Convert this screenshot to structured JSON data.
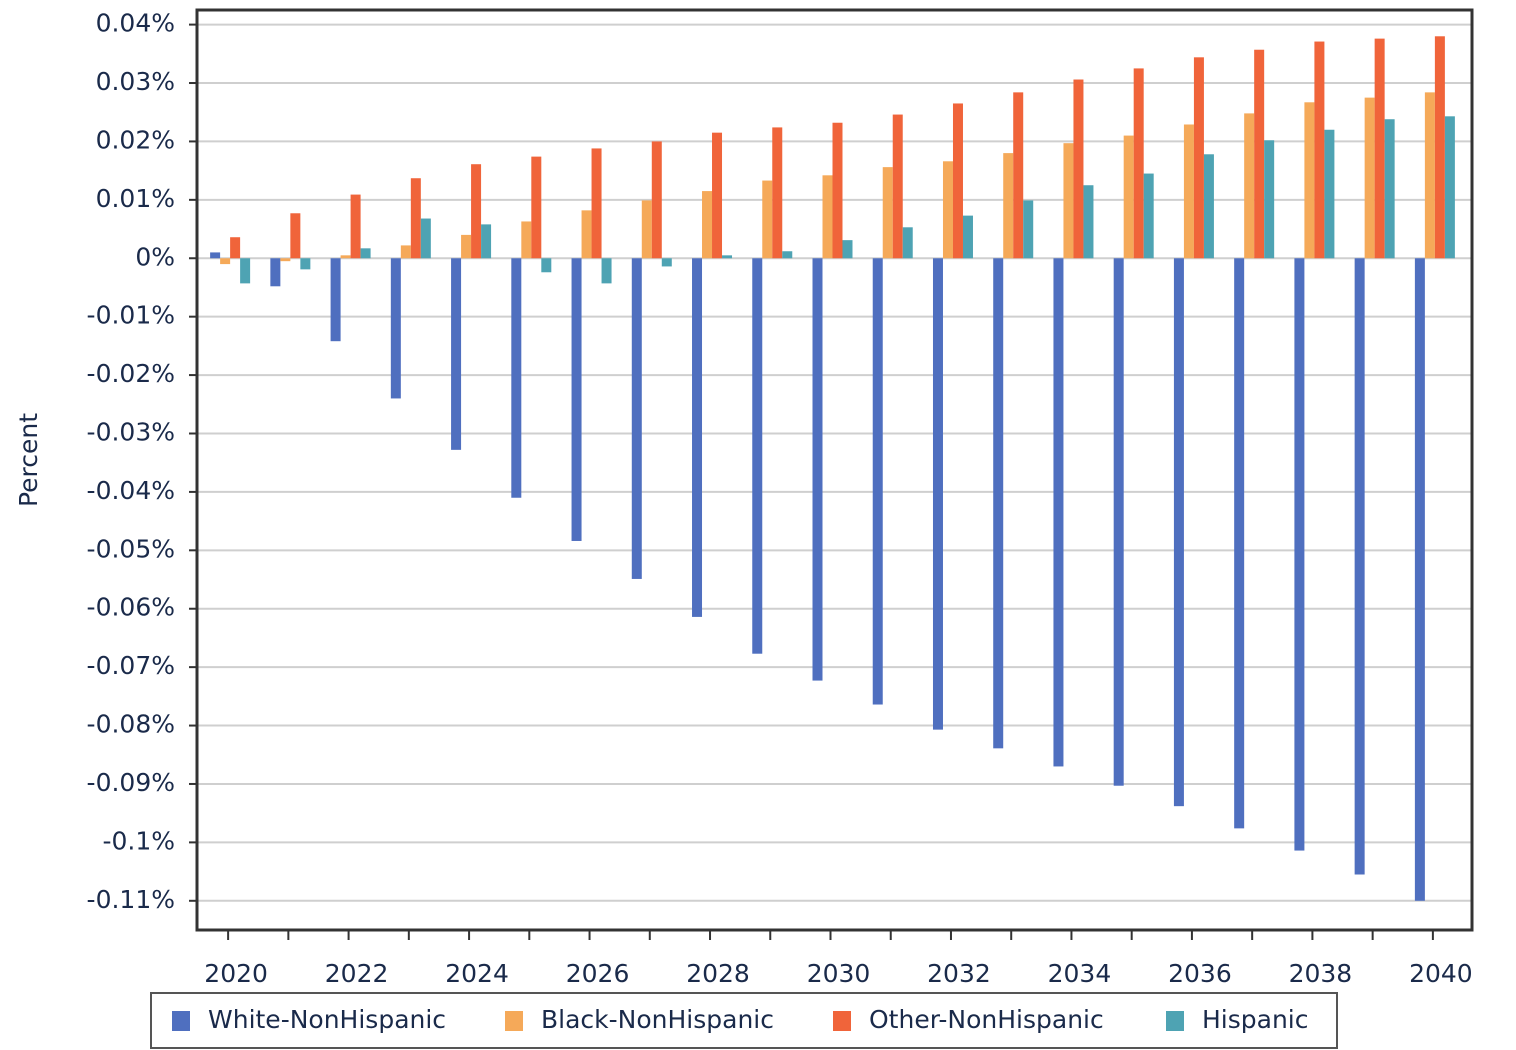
{
  "chart_data": {
    "type": "bar",
    "y_label": "Percent",
    "categories": [
      "2020",
      null,
      "2022",
      null,
      "2024",
      null,
      "2026",
      null,
      "2028",
      null,
      "2030",
      null,
      "2032",
      null,
      "2034",
      null,
      "2036",
      null,
      "2038",
      null,
      "2040"
    ],
    "series": [
      {
        "name": "White-NonHispanic",
        "color": "#4f6fbf",
        "values": [
          0.001,
          -0.0048,
          -0.0142,
          -0.024,
          -0.0328,
          -0.041,
          -0.0484,
          -0.0549,
          -0.0614,
          -0.0677,
          -0.0723,
          -0.0764,
          -0.0807,
          -0.0839,
          -0.087,
          -0.0903,
          -0.0938,
          -0.0976,
          -0.1014,
          -0.1055,
          -0.11
        ]
      },
      {
        "name": "Black-NonHispanic",
        "color": "#f5a959",
        "values": [
          -0.001,
          -0.0005,
          0.0005,
          0.0022,
          0.004,
          0.0063,
          0.0082,
          0.0099,
          0.0115,
          0.0133,
          0.0142,
          0.0156,
          0.0166,
          0.018,
          0.0197,
          0.021,
          0.0229,
          0.0248,
          0.0267,
          0.0275,
          0.0284
        ]
      },
      {
        "name": "Other-NonHispanic",
        "color": "#f0643a",
        "values": [
          0.0036,
          0.0077,
          0.0109,
          0.0137,
          0.0161,
          0.0174,
          0.0188,
          0.02,
          0.0215,
          0.0224,
          0.0232,
          0.0246,
          0.0265,
          0.0284,
          0.0306,
          0.0325,
          0.0344,
          0.0357,
          0.0371,
          0.0376,
          0.038
        ]
      },
      {
        "name": "Hispanic",
        "color": "#4ea3b3",
        "values": [
          -0.0043,
          -0.0019,
          0.0017,
          0.0068,
          0.0058,
          -0.0024,
          -0.0043,
          -0.0014,
          0.0005,
          0.0012,
          0.0031,
          0.0053,
          0.0073,
          0.0099,
          0.0125,
          0.0145,
          0.0178,
          0.0202,
          0.022,
          0.0238,
          0.0243
        ]
      }
    ],
    "ylim": [
      -0.115,
      0.0425
    ],
    "yticks": [
      {
        "value": 0.04,
        "label": "0.04%"
      },
      {
        "value": 0.03,
        "label": "0.03%"
      },
      {
        "value": 0.02,
        "label": "0.02%"
      },
      {
        "value": 0.01,
        "label": "0.01%"
      },
      {
        "value": 0,
        "label": "0%"
      },
      {
        "value": -0.01,
        "label": "-0.01%"
      },
      {
        "value": -0.02,
        "label": "-0.02%"
      },
      {
        "value": -0.03,
        "label": "-0.03%"
      },
      {
        "value": -0.04,
        "label": "-0.04%"
      },
      {
        "value": -0.05,
        "label": "-0.05%"
      },
      {
        "value": -0.06,
        "label": "-0.06%"
      },
      {
        "value": -0.07,
        "label": "-0.07%"
      },
      {
        "value": -0.08,
        "label": "-0.08%"
      },
      {
        "value": -0.09,
        "label": "-0.09%"
      },
      {
        "value": -0.1,
        "label": "-0.1%"
      },
      {
        "value": -0.11,
        "label": "-0.11%"
      }
    ],
    "grid": true
  }
}
